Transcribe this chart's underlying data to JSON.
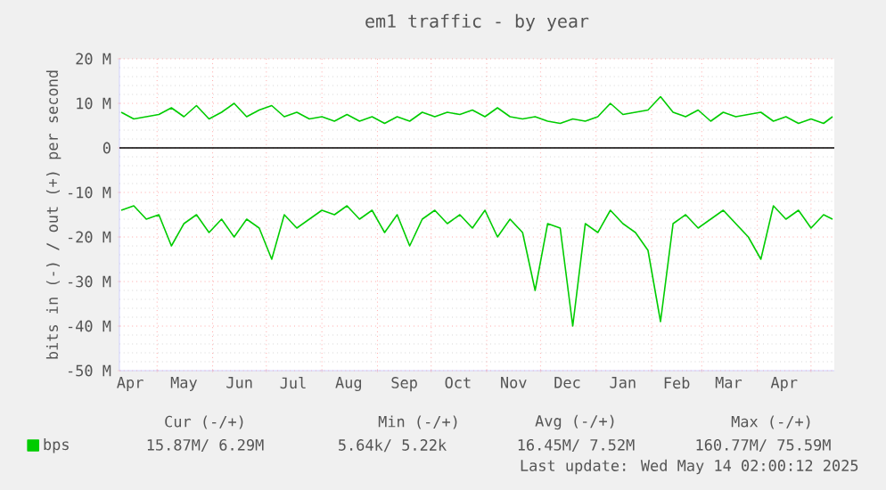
{
  "chart_data": {
    "type": "line",
    "title": "em1 traffic - by year",
    "ylabel": "bits in (-) / out (+) per second",
    "x": [
      "2024-04-11",
      "2024-04-18",
      "2024-04-25",
      "2024-05-02",
      "2024-05-09",
      "2024-05-16",
      "2024-05-23",
      "2024-05-30",
      "2024-06-06",
      "2024-06-13",
      "2024-06-20",
      "2024-06-27",
      "2024-07-04",
      "2024-07-11",
      "2024-07-18",
      "2024-07-25",
      "2024-08-01",
      "2024-08-08",
      "2024-08-15",
      "2024-08-22",
      "2024-08-29",
      "2024-09-05",
      "2024-09-12",
      "2024-09-19",
      "2024-09-26",
      "2024-10-03",
      "2024-10-10",
      "2024-10-17",
      "2024-10-24",
      "2024-10-31",
      "2024-11-07",
      "2024-11-14",
      "2024-11-21",
      "2024-11-28",
      "2024-12-05",
      "2024-12-12",
      "2024-12-19",
      "2024-12-26",
      "2025-01-02",
      "2025-01-09",
      "2025-01-16",
      "2025-01-23",
      "2025-01-30",
      "2025-02-06",
      "2025-02-13",
      "2025-02-20",
      "2025-02-27",
      "2025-03-06",
      "2025-03-13",
      "2025-03-20",
      "2025-03-27",
      "2025-04-03",
      "2025-04-10",
      "2025-04-17",
      "2025-04-24",
      "2025-05-01",
      "2025-05-08",
      "2025-05-13"
    ],
    "series": [
      {
        "name": "bps",
        "color": "#00cc00",
        "values": [
          8,
          6.5,
          7,
          7.5,
          9,
          7,
          9.5,
          6.5,
          8,
          10,
          7,
          8.5,
          9.5,
          7,
          8,
          6.5,
          7,
          6,
          7.5,
          6,
          7,
          5.5,
          7,
          6,
          8,
          7,
          8,
          7.5,
          8.5,
          7,
          9,
          7,
          6.5,
          7,
          6,
          5.5,
          6.5,
          6,
          7,
          10,
          7.5,
          8,
          8.5,
          11.5,
          8,
          7,
          8.5,
          6,
          8,
          7,
          7.5,
          8,
          6,
          7,
          5.5,
          6.5,
          5.5,
          7
        ]
      },
      {
        "color": "#00cc00",
        "values": [
          -14,
          -13,
          -16,
          -15,
          -22,
          -17,
          -15,
          -19,
          -16,
          -20,
          -16,
          -18,
          -25,
          -15,
          -18,
          -16,
          -14,
          -15,
          -13,
          -16,
          -14,
          -19,
          -15,
          -22,
          -16,
          -14,
          -17,
          -15,
          -18,
          -14,
          -20,
          -16,
          -19,
          -32,
          -17,
          -18,
          -40,
          -17,
          -19,
          -14,
          -17,
          -19,
          -23,
          -39,
          -17,
          -15,
          -18,
          -16,
          -14,
          -17,
          -20,
          -25,
          -13,
          -16,
          -14,
          -18,
          -15,
          -16
        ]
      }
    ],
    "xlim": [
      "2024-04-10",
      "2025-05-14"
    ],
    "xticks": [
      {
        "value": "2024-05-01",
        "label": null
      },
      {
        "value": "2024-06-01",
        "label": null
      },
      {
        "value": "2024-07-01",
        "label": null
      },
      {
        "value": "2024-08-01",
        "label": null
      },
      {
        "value": "2024-09-01",
        "label": null
      },
      {
        "value": "2024-10-01",
        "label": null
      },
      {
        "value": "2024-11-01",
        "label": null
      },
      {
        "value": "2024-12-01",
        "label": null
      },
      {
        "value": "2025-01-01",
        "label": null
      },
      {
        "value": "2025-02-01",
        "label": null
      },
      {
        "value": "2025-03-01",
        "label": null
      },
      {
        "value": "2025-04-01",
        "label": null
      },
      {
        "value": "2025-05-01",
        "label": null
      },
      {
        "value": "2024-04-16",
        "label": "Apr"
      },
      {
        "value": "2024-05-16",
        "label": "May"
      },
      {
        "value": "2024-06-16",
        "label": "Jun"
      },
      {
        "value": "2024-07-16",
        "label": "Jul"
      },
      {
        "value": "2024-08-16",
        "label": "Aug"
      },
      {
        "value": "2024-09-16",
        "label": "Sep"
      },
      {
        "value": "2024-10-16",
        "label": "Oct"
      },
      {
        "value": "2024-11-16",
        "label": "Nov"
      },
      {
        "value": "2024-12-16",
        "label": "Dec"
      },
      {
        "value": "2025-01-16",
        "label": "Jan"
      },
      {
        "value": "2025-02-15",
        "label": "Feb"
      },
      {
        "value": "2025-03-16",
        "label": "Mar"
      },
      {
        "value": "2025-04-16",
        "label": "Apr"
      }
    ],
    "ylim": [
      -50,
      20
    ],
    "yticks": [
      {
        "value": -50,
        "label": "-50 M"
      },
      {
        "value": -40,
        "label": "-40 M"
      },
      {
        "value": -30,
        "label": "-30 M"
      },
      {
        "value": -20,
        "label": "-20 M"
      },
      {
        "value": -10,
        "label": "-10 M"
      },
      0,
      {
        "value": 10,
        "label": "10 M"
      },
      {
        "value": 20,
        "label": "20 M"
      }
    ],
    "ref_lines": [
      {
        "axis": "y",
        "value": 0,
        "color": "#000000"
      }
    ],
    "grid": true,
    "legend": "bottom left",
    "marker": "none",
    "line_style": "solid",
    "annotations": [
      "Cur (-/+)",
      "Min (-/+)",
      "Avg (-/+)",
      "Max (-/+)",
      "15.87M/   6.29M",
      "5.64k/   5.22k",
      "16.45M/   7.52M",
      "160.77M/  75.59M",
      "Last update: Wed May 14 02:00:12 2025"
    ]
  }
}
